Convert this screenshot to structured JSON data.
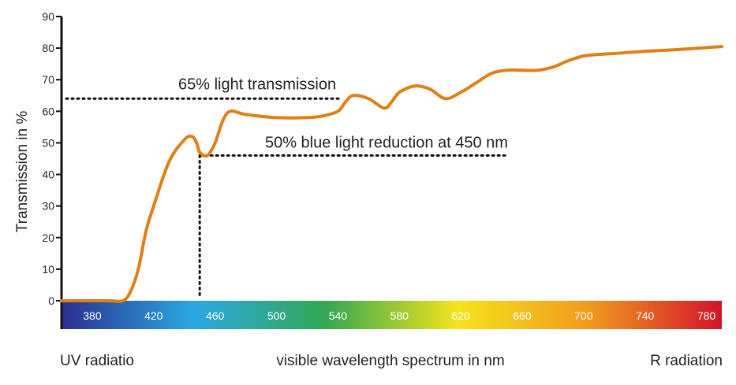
{
  "chart_data": {
    "type": "line",
    "title": "",
    "xlabel": "visible wavelength spectrum in nm",
    "ylabel": "Transmission in %",
    "xlim": [
      360,
      790
    ],
    "ylim": [
      0,
      90
    ],
    "yticks": [
      0,
      10,
      20,
      30,
      40,
      50,
      60,
      70,
      80,
      90
    ],
    "xticks": [
      380,
      420,
      460,
      500,
      540,
      580,
      620,
      660,
      700,
      740,
      780
    ],
    "grid": false,
    "legend": "none",
    "bottom_labels": {
      "left": "UV radiatio",
      "right": "R radiation"
    },
    "series": [
      {
        "color": "#e07f16",
        "x": [
          360,
          390,
          400,
          405,
          410,
          415,
          420,
          430,
          440,
          445,
          448,
          450,
          455,
          460,
          465,
          470,
          480,
          500,
          520,
          530,
          540,
          545,
          550,
          560,
          570,
          575,
          580,
          590,
          600,
          610,
          620,
          630,
          640,
          650,
          660,
          670,
          680,
          690,
          700,
          710,
          720,
          740,
          760,
          790
        ],
        "y": [
          0,
          0,
          0,
          3,
          10,
          22,
          30,
          44,
          51,
          52,
          50,
          47,
          46,
          50,
          57,
          60,
          59,
          58,
          58,
          58.5,
          60,
          63,
          65,
          64,
          61,
          63,
          66,
          68,
          67,
          64,
          66,
          69,
          72,
          73,
          73,
          73,
          74,
          76,
          77.5,
          78,
          78.3,
          79,
          79.5,
          80.5
        ]
      }
    ],
    "annotations": [
      {
        "text": "65% light transmission",
        "y": 64,
        "x_end": 545
      },
      {
        "text": "50% blue light reduction at 450 nm",
        "x": 450,
        "y": 46,
        "x_end": 660
      }
    ],
    "spectrum_colors": [
      "#2b2f8f",
      "#2aa8e2",
      "#34a853",
      "#f4e41c",
      "#f19a1f",
      "#d2142a"
    ]
  }
}
